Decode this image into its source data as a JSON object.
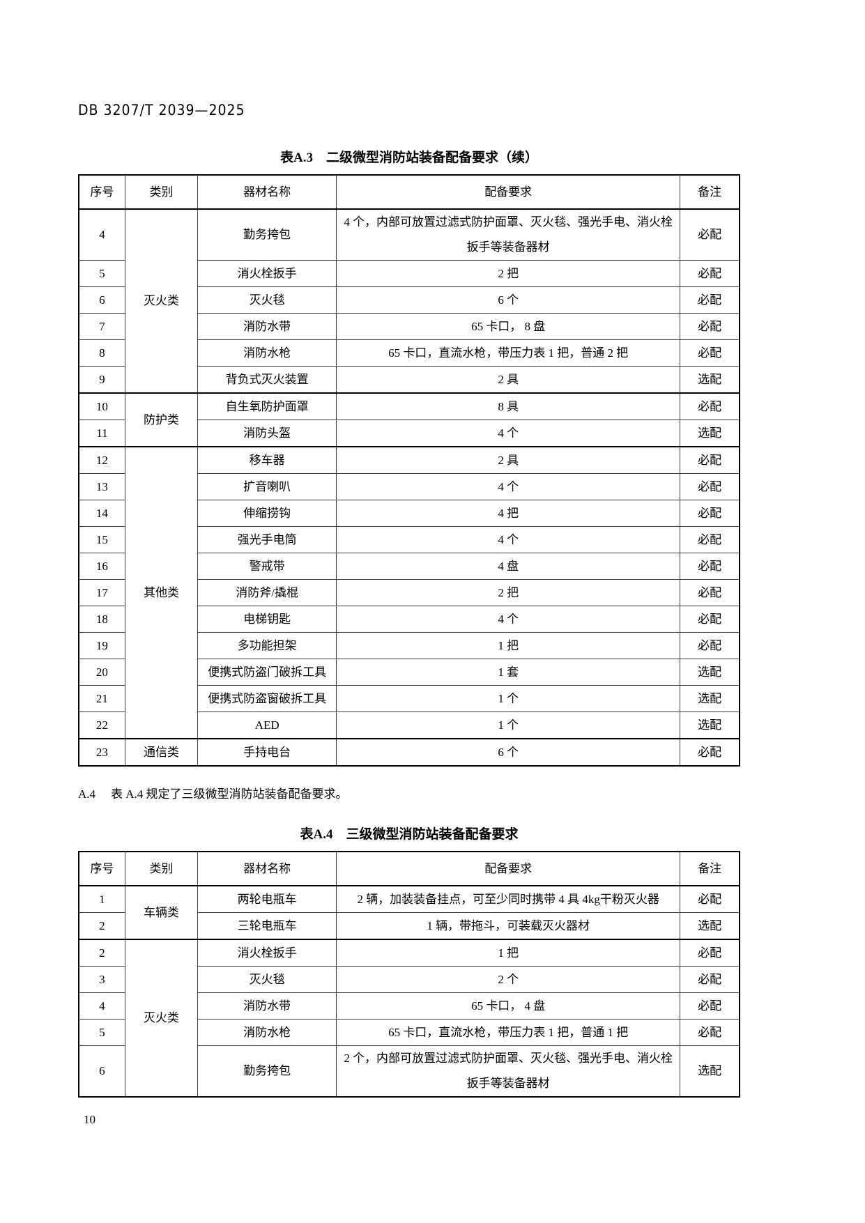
{
  "page": {
    "doc_code": "DB 3207/T 2039—2025",
    "clause_label": "A.4",
    "clause_text": "表 A.4 规定了三级微型消防站装备配备要求。",
    "page_number": "10"
  },
  "table_a3": {
    "title": "表A.3　二级微型消防站装备配备要求（续）",
    "columns": [
      "序号",
      "类别",
      "器材名称",
      "配备要求",
      "备注"
    ],
    "rows": [
      {
        "no": "4",
        "category": "灭火类",
        "category_span": 6,
        "name": "勤务挎包",
        "requirement": "4 个，内部可放置过滤式防护面罩、灭火毯、强光手电、消火栓扳手等装备器材",
        "remark": "必配"
      },
      {
        "no": "5",
        "name": "消火栓扳手",
        "requirement": "2 把",
        "remark": "必配"
      },
      {
        "no": "6",
        "name": "灭火毯",
        "requirement": "6 个",
        "remark": "必配"
      },
      {
        "no": "7",
        "name": "消防水带",
        "requirement": "65 卡口， 8 盘",
        "remark": "必配"
      },
      {
        "no": "8",
        "name": "消防水枪",
        "requirement": "65 卡口，直流水枪，带压力表 1 把，普通 2 把",
        "remark": "必配"
      },
      {
        "no": "9",
        "name": "背负式灭火装置",
        "requirement": "2 具",
        "remark": "选配"
      },
      {
        "no": "10",
        "category": "防护类",
        "category_span": 2,
        "name": "自生氧防护面罩",
        "requirement": "8 具",
        "remark": "必配",
        "group_start": true
      },
      {
        "no": "11",
        "name": "消防头盔",
        "requirement": "4 个",
        "remark": "选配"
      },
      {
        "no": "12",
        "category": "其他类",
        "category_span": 11,
        "name": "移车器",
        "requirement": "2 具",
        "remark": "必配",
        "group_start": true
      },
      {
        "no": "13",
        "name": "扩音喇叭",
        "requirement": "4 个",
        "remark": "必配"
      },
      {
        "no": "14",
        "name": "伸缩捞钩",
        "requirement": "4 把",
        "remark": "必配"
      },
      {
        "no": "15",
        "name": "强光手电筒",
        "requirement": "4 个",
        "remark": "必配"
      },
      {
        "no": "16",
        "name": "警戒带",
        "requirement": "4 盘",
        "remark": "必配"
      },
      {
        "no": "17",
        "name": "消防斧/撬棍",
        "requirement": "2 把",
        "remark": "必配"
      },
      {
        "no": "18",
        "name": "电梯钥匙",
        "requirement": "4 个",
        "remark": "必配"
      },
      {
        "no": "19",
        "name": "多功能担架",
        "requirement": "1 把",
        "remark": "必配"
      },
      {
        "no": "20",
        "name": "便携式防盗门破拆工具",
        "requirement": "1 套",
        "remark": "选配"
      },
      {
        "no": "21",
        "name": "便携式防盗窗破拆工具",
        "requirement": "1 个",
        "remark": "选配"
      },
      {
        "no": "22",
        "name": "AED",
        "requirement": "1 个",
        "remark": "选配"
      },
      {
        "no": "23",
        "category": "通信类",
        "category_span": 1,
        "name": "手持电台",
        "requirement": "6 个",
        "remark": "必配",
        "group_start": true
      }
    ]
  },
  "table_a4": {
    "title": "表A.4　三级微型消防站装备配备要求",
    "columns": [
      "序号",
      "类别",
      "器材名称",
      "配备要求",
      "备注"
    ],
    "rows": [
      {
        "no": "1",
        "category": "车辆类",
        "category_span": 2,
        "name": "两轮电瓶车",
        "requirement": "2 辆，加装装备挂点，可至少同时携带 4 具 4kg干粉灭火器",
        "remark": "必配"
      },
      {
        "no": "2",
        "name": "三轮电瓶车",
        "requirement": "1 辆，带拖斗，可装载灭火器材",
        "remark": "选配"
      },
      {
        "no": "2",
        "category": "灭火类",
        "category_span": 5,
        "name": "消火栓扳手",
        "requirement": "1 把",
        "remark": "必配",
        "group_start": true
      },
      {
        "no": "3",
        "name": "灭火毯",
        "requirement": "2 个",
        "remark": "必配"
      },
      {
        "no": "4",
        "name": "消防水带",
        "requirement": "65 卡口， 4 盘",
        "remark": "必配"
      },
      {
        "no": "5",
        "name": "消防水枪",
        "requirement": "65 卡口，直流水枪，带压力表 1 把，普通 1 把",
        "remark": "必配"
      },
      {
        "no": "6",
        "name": "勤务挎包",
        "requirement": "2 个，内部可放置过滤式防护面罩、灭火毯、强光手电、消火栓扳手等装备器材",
        "remark": "选配"
      }
    ]
  }
}
